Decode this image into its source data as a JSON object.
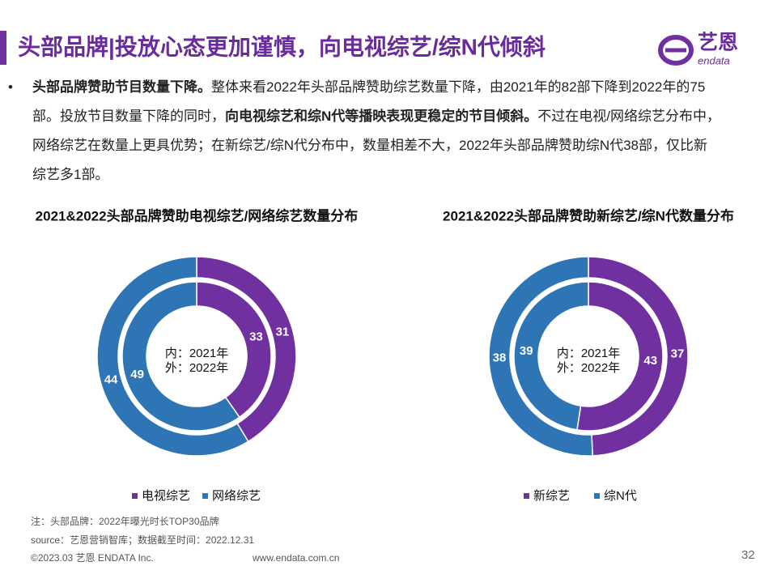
{
  "header": {
    "title": "头部品牌|投放心态更加谨慎，向电视综艺/综N代倾斜",
    "logo_text": "艺恩",
    "logo_sub": "endata"
  },
  "body": {
    "segments": [
      {
        "text": "头部品牌赞助节目数量下降。",
        "bold": true
      },
      {
        "text": "整体来看2022年头部品牌赞助综艺数量下降，由2021年的82部下降到2022年的75部。投放节目数量下降的同时，",
        "bold": false
      },
      {
        "text": "向电视综艺和综N代等播映表现更稳定的节目倾斜。",
        "bold": true
      },
      {
        "text": "不过在电视/网络综艺分布中，网络综艺在数量上更具优势；在新综艺/综N代分布中，数量相差不大，2022年头部品牌赞助综N代38部，仅比新综艺多1部。",
        "bold": false
      }
    ]
  },
  "chart_data": [
    {
      "type": "donut",
      "title": "2021&2022头部品牌赞助电视综艺/网络综艺数量分布",
      "categories": [
        "电视综艺",
        "网络综艺"
      ],
      "colors": [
        "#7030a0",
        "#2e75b6"
      ],
      "series": [
        {
          "name": "内：2021年",
          "values": [
            33,
            49
          ]
        },
        {
          "name": "外：2022年",
          "values": [
            31,
            44
          ]
        }
      ]
    },
    {
      "type": "donut",
      "title": "2021&2022头部品牌赞助新综艺/综N代数量分布",
      "categories": [
        "新综艺",
        "综N代"
      ],
      "colors": [
        "#7030a0",
        "#2e75b6"
      ],
      "series": [
        {
          "name": "内：2021年",
          "values": [
            43,
            39
          ]
        },
        {
          "name": "外：2022年",
          "values": [
            37,
            38
          ]
        }
      ]
    }
  ],
  "footer": {
    "note": "注：头部品牌：2022年曝光时长TOP30品牌",
    "source": "source：艺恩营销智库；数据截至时间：2022.12.31",
    "copyright": "©2023.03 艺恩 ENDATA Inc.",
    "website": "www.endata.com.cn",
    "page": 32
  }
}
